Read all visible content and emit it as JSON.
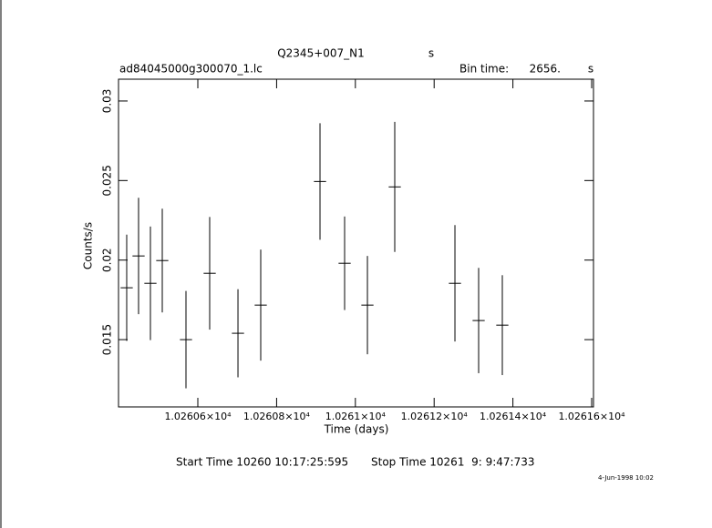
{
  "chart_data": {
    "type": "errorbar",
    "title": "Q2345+007_N1",
    "title_unit": "s",
    "file": "ad84045000g300070_1.lc",
    "bin_time_caption": "Bin time:",
    "bin_time": {
      "value": 2656,
      "label": "2656."
    },
    "bin_time_unit": "s",
    "x_label": "Time (days)",
    "y_label": "Counts/s",
    "start_time": "Start Time 10260 10:17:25:595",
    "stop_time": "Stop Time 10261  9: 9:47:733",
    "timestamp": "4-Jun-1998 10:02",
    "color": "#000000",
    "xlim": [
      10260.3986,
      10261.6046
    ],
    "xticks": [
      {
        "value": 10260.6,
        "label": "1.02606×10⁴"
      },
      {
        "value": 10260.8,
        "label": "1.02608×10⁴"
      },
      {
        "value": 10261.0,
        "label": "1.0261×10⁴"
      },
      {
        "value": 10261.2,
        "label": "1.02612×10⁴"
      },
      {
        "value": 10261.4,
        "label": "1.02614×10⁴"
      },
      {
        "value": 10261.6,
        "label": "1.02616×10⁴"
      }
    ],
    "ylim": [
      0.01077,
      0.03137
    ],
    "yticks": [
      0.015,
      0.02,
      0.025,
      0.03
    ],
    "x": [
      10260.4194,
      10260.4495,
      10260.4796,
      10260.5097,
      10260.5699,
      10260.6301,
      10260.7019,
      10260.7597,
      10260.9102,
      10260.9727,
      10261.0306,
      10261.1,
      10261.2528,
      10261.313,
      10261.3731
    ],
    "xerr": 0.0154,
    "values": [
      0.01826,
      0.02026,
      0.01854,
      0.01997,
      0.015,
      0.01917,
      0.0154,
      0.01717,
      0.02494,
      0.0198,
      0.01717,
      0.0246,
      0.01854,
      0.0162,
      0.01591
    ],
    "errors": [
      0.00334,
      0.00366,
      0.00357,
      0.00326,
      0.00306,
      0.00354,
      0.00277,
      0.00349,
      0.00366,
      0.00294,
      0.00309,
      0.00409,
      0.00366,
      0.00331,
      0.00314
    ]
  }
}
